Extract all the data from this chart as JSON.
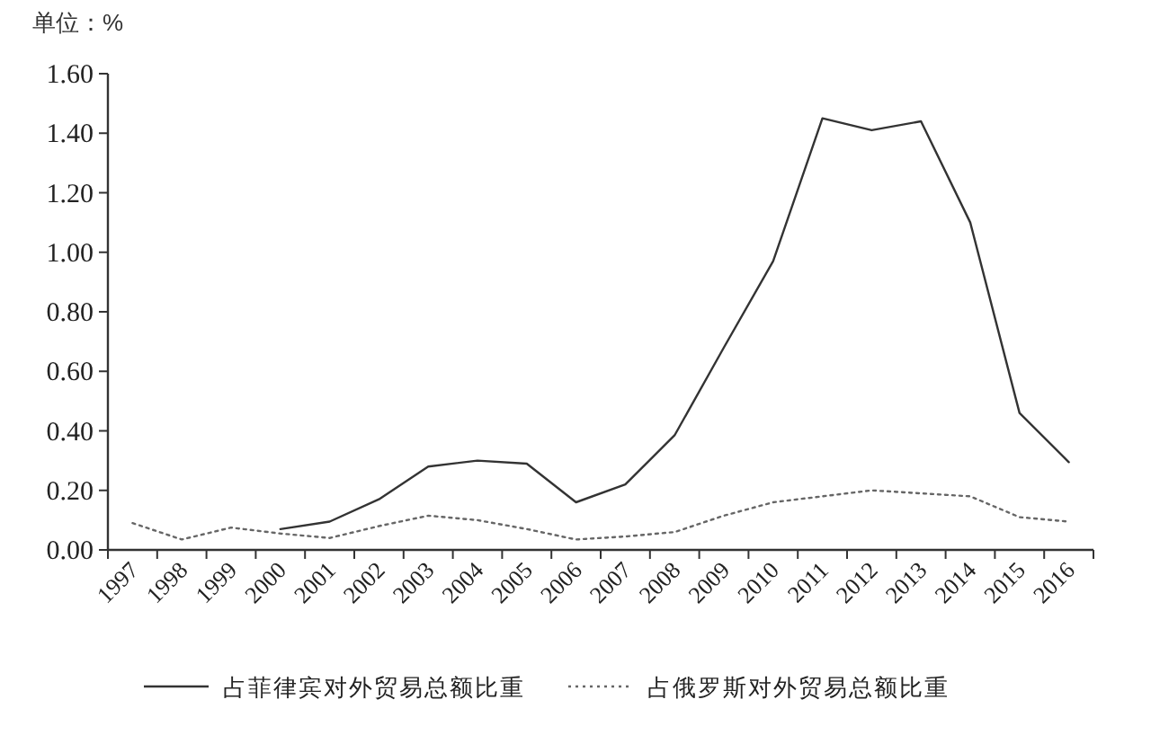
{
  "chart_data": {
    "type": "line",
    "ylabel": "单位：%",
    "categories": [
      "1997",
      "1998",
      "1999",
      "2000",
      "2001",
      "2002",
      "2003",
      "2004",
      "2005",
      "2006",
      "2007",
      "2008",
      "2009",
      "2010",
      "2011",
      "2012",
      "2013",
      "2014",
      "2015",
      "2016"
    ],
    "series": [
      {
        "name": "占菲律宾对外贸易总额比重",
        "color": "#333333",
        "line_style": "solid",
        "values": [
          null,
          null,
          null,
          0.07,
          0.095,
          0.17,
          0.28,
          0.3,
          0.29,
          0.16,
          0.22,
          0.385,
          0.68,
          0.97,
          1.45,
          1.41,
          1.44,
          1.1,
          0.46,
          0.295
        ]
      },
      {
        "name": "占俄罗斯对外贸易总额比重",
        "color": "#666666",
        "line_style": "dotted",
        "values": [
          0.09,
          0.035,
          0.075,
          0.055,
          0.04,
          0.08,
          0.115,
          0.1,
          0.07,
          0.035,
          0.045,
          0.06,
          0.115,
          0.16,
          0.18,
          0.2,
          0.19,
          0.18,
          0.11,
          0.095
        ]
      }
    ],
    "ylim": [
      0,
      1.6
    ],
    "yticks": [
      {
        "value": 0,
        "label": "0.00"
      },
      {
        "value": 0.2,
        "label": "0.20"
      },
      {
        "value": 0.4,
        "label": "0.40"
      },
      {
        "value": 0.6,
        "label": "0.60"
      },
      {
        "value": 0.8,
        "label": "0.80"
      },
      {
        "value": 1.0,
        "label": "1.00"
      },
      {
        "value": 1.2,
        "label": "1.20"
      },
      {
        "value": 1.4,
        "label": "1.40"
      },
      {
        "value": 1.6,
        "label": "1.60"
      }
    ],
    "grid": false,
    "legend": "bottom"
  }
}
